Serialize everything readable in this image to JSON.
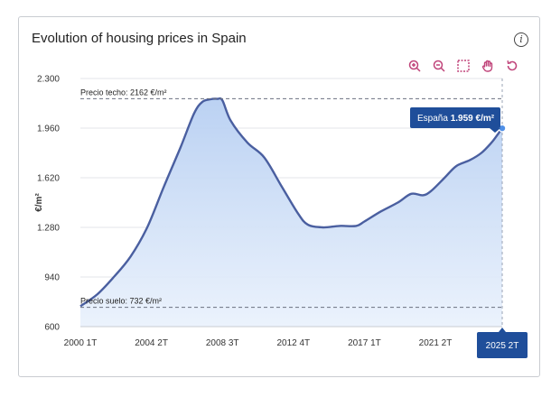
{
  "card": {
    "title": "Evolution of housing prices in Spain"
  },
  "toolbar": {
    "info_glyph": "i",
    "tools": [
      {
        "name": "zoom-in-icon"
      },
      {
        "name": "zoom-out-icon"
      },
      {
        "name": "selection-zoom-icon"
      },
      {
        "name": "pan-icon"
      },
      {
        "name": "reset-zoom-icon"
      }
    ],
    "accent_color": "#c0447a"
  },
  "chart_data": {
    "type": "area",
    "ylabel": "€/m²",
    "ylim": [
      600,
      2300
    ],
    "yticks": [
      "600",
      "940",
      "1.280",
      "1.620",
      "1.960",
      "2.300"
    ],
    "ytick_values": [
      600,
      940,
      1280,
      1620,
      1960,
      2300
    ],
    "xticks": [
      "2000 1T",
      "2004 2T",
      "2008 3T",
      "2012 4T",
      "2017 1T",
      "2021 2T",
      "2025 2T"
    ],
    "xtick_positions": [
      2000.0,
      2004.25,
      2008.5,
      2012.75,
      2017.0,
      2021.25,
      2025.25
    ],
    "xlim": [
      2000.0,
      2025.25
    ],
    "series": [
      {
        "name": "España",
        "color": "#4a5fa0",
        "fill_color": "#cfe0f7",
        "x": [
          2000.0,
          2001.0,
          2002.0,
          2003.0,
          2004.0,
          2005.0,
          2006.0,
          2006.8,
          2007.3,
          2007.8,
          2008.2,
          2008.5,
          2009.0,
          2010.0,
          2011.0,
          2012.0,
          2013.0,
          2013.6,
          2014.5,
          2015.5,
          2016.5,
          2017.0,
          2018.0,
          2019.0,
          2019.8,
          2020.5,
          2021.0,
          2021.8,
          2022.5,
          2023.3,
          2024.0,
          2024.6,
          2025.0,
          2025.25
        ],
        "values": [
          740,
          820,
          940,
          1080,
          1280,
          1560,
          1830,
          2060,
          2140,
          2158,
          2160,
          2150,
          2010,
          1860,
          1760,
          1570,
          1380,
          1300,
          1280,
          1290,
          1290,
          1320,
          1390,
          1450,
          1510,
          1500,
          1530,
          1620,
          1700,
          1740,
          1790,
          1860,
          1920,
          1959
        ]
      }
    ],
    "reference_lines": [
      {
        "label": "Precio techo: 2162 €/m²",
        "value": 2162
      },
      {
        "label": "Precio suelo: 732 €/m²",
        "value": 732
      }
    ],
    "tooltip": {
      "series": "España",
      "value_text": "1.959 €/m²",
      "x_label": "2025 2T"
    }
  }
}
